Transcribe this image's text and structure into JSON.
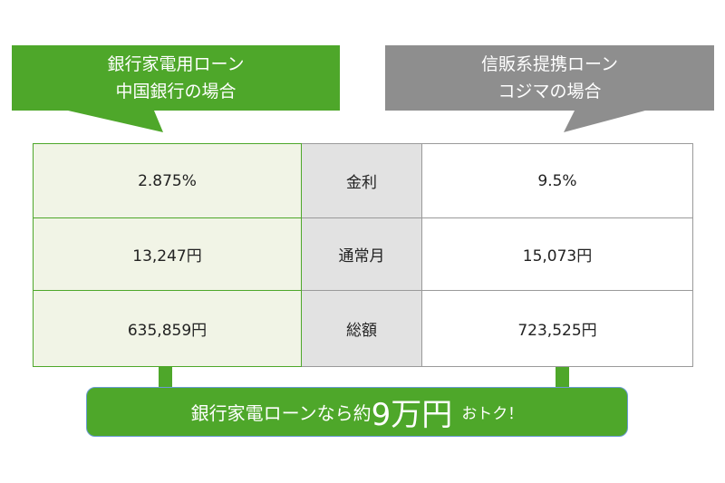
{
  "left_bubble": {
    "line1": "銀行家電用ローン",
    "line2": "中国銀行の場合",
    "color": "#4ea72a"
  },
  "right_bubble": {
    "line1": "信販系提携ローン",
    "line2": "コジマの場合",
    "color": "#8e8e8e"
  },
  "table": {
    "rows": [
      {
        "left": "2.875%",
        "label": "金利",
        "right": "9.5%"
      },
      {
        "left": "13,247円",
        "label": "通常月",
        "right": "15,073円"
      },
      {
        "left": "635,859円",
        "label": "総額",
        "right": "723,525円"
      }
    ]
  },
  "banner": {
    "prefix": "銀行家電ローンなら約",
    "amount": "9万円",
    "suffix": "おトク！"
  }
}
